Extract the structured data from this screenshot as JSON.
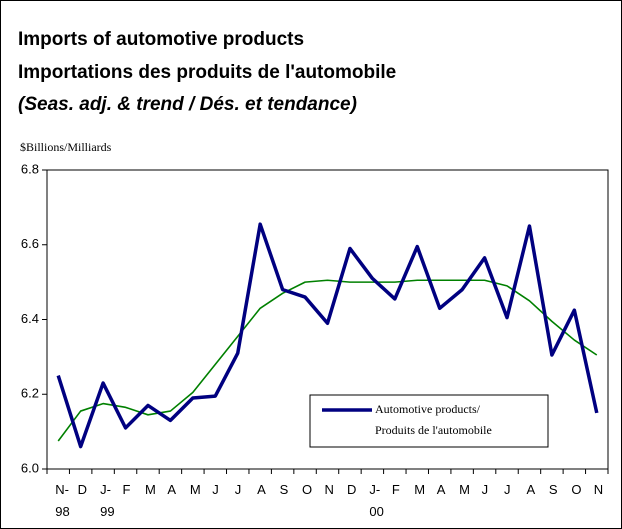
{
  "chart_data": {
    "type": "line",
    "title": "Imports of automotive products",
    "subtitle": "Importations des produits de l'automobile",
    "note": "(Seas. adj. & trend / Dés. et tendance)",
    "ylabel": "$Billions/Milliards",
    "categories": [
      "N-\n98",
      "D",
      "J-\n99",
      "F",
      "M",
      "A",
      "M",
      "J",
      "J",
      "A",
      "S",
      "O",
      "N",
      "D",
      "J-\n00",
      "F",
      "M",
      "A",
      "M",
      "J",
      "J",
      "A",
      "S",
      "O",
      "N"
    ],
    "series": [
      {
        "name": "Automotive products/\nProduits de l'automobile",
        "color": "#000080",
        "values": [
          6.25,
          6.06,
          6.23,
          6.11,
          6.17,
          6.13,
          6.19,
          6.195,
          6.31,
          6.655,
          6.48,
          6.46,
          6.39,
          6.59,
          6.51,
          6.455,
          6.595,
          6.43,
          6.48,
          6.565,
          6.405,
          6.65,
          6.305,
          6.425,
          6.15
        ]
      },
      {
        "color": "#008000",
        "values": [
          6.075,
          6.155,
          6.175,
          6.165,
          6.145,
          6.155,
          6.205,
          6.28,
          6.355,
          6.43,
          6.47,
          6.5,
          6.505,
          6.5,
          6.5,
          6.5,
          6.505,
          6.505,
          6.505,
          6.505,
          6.49,
          6.45,
          6.395,
          6.345,
          6.305
        ]
      }
    ],
    "ylim": [
      6.0,
      6.8
    ],
    "yticks": [
      {
        "value": 6.0,
        "label": "6.0"
      },
      6.2,
      6.4,
      6.6,
      {
        "value": 6.8,
        "label": "6.8"
      }
    ],
    "grid": false,
    "legend": "lower-right"
  }
}
